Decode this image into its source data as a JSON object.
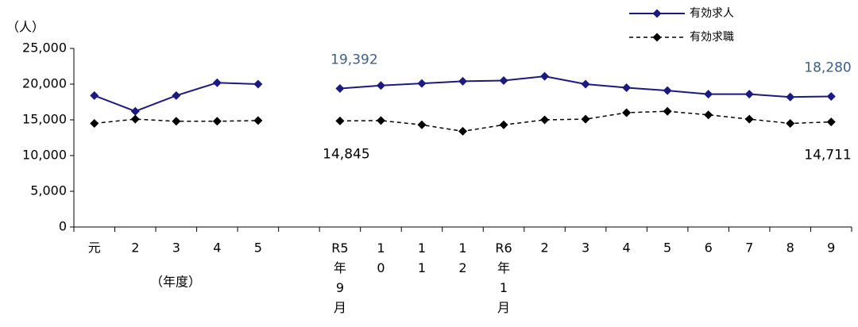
{
  "chart_data": {
    "type": "line",
    "y_unit_label": "（人）",
    "x_group_label": "（年度）",
    "categories": [
      "元",
      "2",
      "3",
      "4",
      "5",
      null,
      "R5年9月",
      "10",
      "11",
      "12",
      "R6年1月",
      "2",
      "3",
      "4",
      "5",
      "6",
      "7",
      "8",
      "9"
    ],
    "series": [
      {
        "name": "有効求人",
        "color": "#1a1a80",
        "dashed": false,
        "values": [
          18400,
          16200,
          18400,
          20200,
          20000,
          null,
          19392,
          19800,
          20100,
          20400,
          20500,
          21100,
          20000,
          19500,
          19100,
          18600,
          18600,
          18200,
          18280
        ],
        "value_labels": [
          null,
          null,
          null,
          null,
          null,
          null,
          "19,392",
          null,
          null,
          null,
          null,
          null,
          null,
          null,
          null,
          null,
          null,
          null,
          "18,280"
        ],
        "label_color": "#3a5f8f"
      },
      {
        "name": "有効求職",
        "color": "#000000",
        "dashed": true,
        "values": [
          14500,
          15100,
          14800,
          14800,
          14900,
          null,
          14845,
          14900,
          14300,
          13400,
          14300,
          15000,
          15100,
          16000,
          16200,
          15700,
          15100,
          14500,
          14711
        ],
        "value_labels": [
          null,
          null,
          null,
          null,
          null,
          null,
          "14,845",
          null,
          null,
          null,
          null,
          null,
          null,
          null,
          null,
          null,
          null,
          null,
          "14,711"
        ],
        "label_color": "#000000"
      }
    ],
    "ylim": [
      0,
      25000
    ],
    "yticks": [
      0,
      {
        "value": 5000,
        "label": "5,000"
      },
      {
        "value": 10000,
        "label": "10,000"
      },
      {
        "value": 15000,
        "label": "15,000"
      },
      {
        "value": 20000,
        "label": "20,000"
      },
      {
        "value": 25000,
        "label": "25,000"
      }
    ],
    "grid": false
  }
}
